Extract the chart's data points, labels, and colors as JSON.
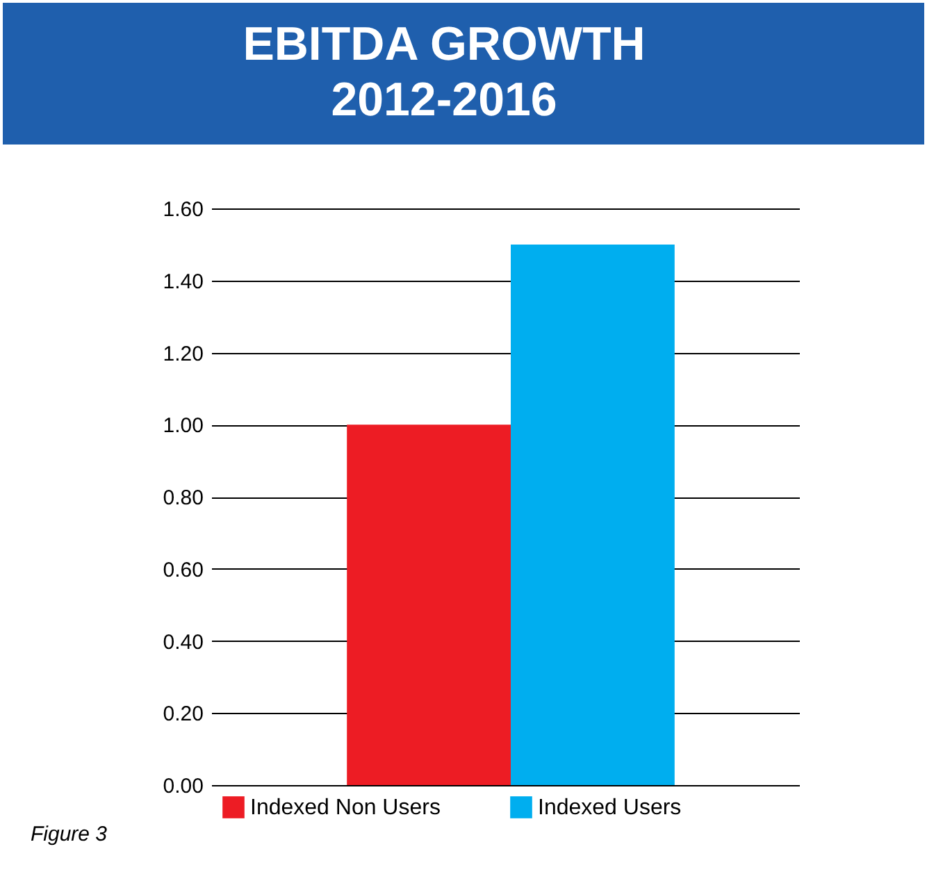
{
  "chart_data": {
    "type": "bar",
    "title": "EBITDA GROWTH\n2012-2016",
    "categories": [
      null
    ],
    "series": [
      {
        "name": "Indexed Non Users",
        "color": "#ed1c24",
        "values": [
          1.0
        ]
      },
      {
        "name": "Indexed Users",
        "color": "#00aeef",
        "values": [
          1.5
        ]
      }
    ],
    "ylim": [
      0,
      1.6
    ],
    "yticks": [
      {
        "value": 0,
        "label": "0.00"
      },
      {
        "value": 0.2,
        "label": "0.20"
      },
      {
        "value": 0.4,
        "label": "0.40"
      },
      {
        "value": 0.6,
        "label": "0.60"
      },
      {
        "value": 0.8,
        "label": "0.80"
      },
      {
        "value": 1.0,
        "label": "1.00"
      },
      {
        "value": 1.2,
        "label": "1.20"
      },
      {
        "value": 1.4,
        "label": "1.40"
      },
      {
        "value": 1.6,
        "label": "1.60"
      }
    ],
    "grid": "y",
    "legend": "bottom",
    "tick_labels": "y",
    "annotations": [
      "Figure 3"
    ]
  }
}
